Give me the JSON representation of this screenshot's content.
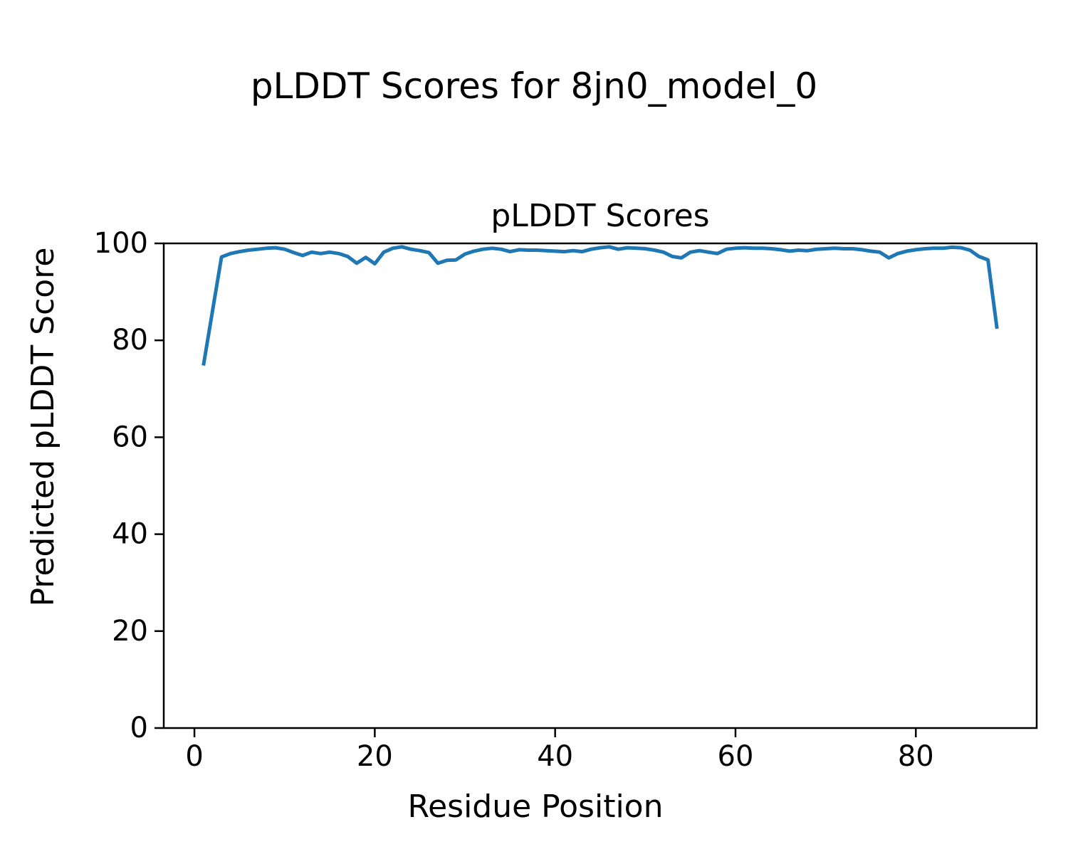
{
  "figure": {
    "suptitle": "pLDDT Scores for 8jn0_model_0"
  },
  "chart_data": {
    "type": "line",
    "title": "pLDDT Scores",
    "xlabel": "Residue Position",
    "ylabel": "Predicted pLDDT Score",
    "x_start": 1,
    "x_step": 1,
    "series": [
      {
        "name": "pLDDT",
        "color": "#1f77b4",
        "values": [
          74.8,
          86.0,
          97.2,
          97.9,
          98.3,
          98.6,
          98.8,
          99.0,
          99.1,
          98.8,
          98.1,
          97.5,
          98.2,
          97.9,
          98.2,
          97.9,
          97.3,
          95.9,
          97.1,
          95.8,
          98.2,
          99.0,
          99.3,
          98.8,
          98.5,
          98.1,
          95.9,
          96.5,
          96.6,
          97.8,
          98.4,
          98.8,
          99.0,
          98.8,
          98.3,
          98.7,
          98.6,
          98.6,
          98.5,
          98.4,
          98.3,
          98.5,
          98.3,
          98.8,
          99.1,
          99.3,
          98.8,
          99.1,
          99.0,
          98.9,
          98.6,
          98.2,
          97.3,
          97.0,
          98.2,
          98.5,
          98.2,
          97.9,
          98.8,
          99.0,
          99.1,
          99.0,
          99.0,
          98.9,
          98.7,
          98.4,
          98.6,
          98.5,
          98.8,
          98.9,
          99.0,
          98.9,
          98.9,
          98.7,
          98.4,
          98.2,
          97.0,
          97.9,
          98.4,
          98.7,
          98.9,
          99.0,
          99.0,
          99.2,
          99.1,
          98.6,
          97.3,
          96.6,
          82.4
        ]
      }
    ],
    "xlim": [
      -3.4,
      93.4
    ],
    "ylim": [
      0,
      100
    ],
    "xticks": [
      0,
      20,
      40,
      60,
      80
    ],
    "yticks": [
      0,
      20,
      40,
      60,
      80,
      100
    ],
    "grid": false,
    "legend": "none",
    "axes_color": "#000000",
    "background": "#ffffff"
  }
}
